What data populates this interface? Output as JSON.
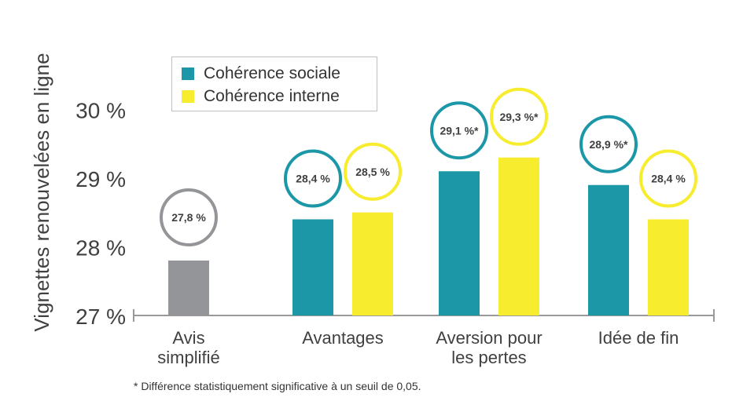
{
  "chart_data": {
    "type": "bar",
    "ylabel": "Vignettes renouvelées en ligne",
    "ylim": [
      27,
      30
    ],
    "yticks": [
      "27 %",
      "28 %",
      "29 %",
      "30 %"
    ],
    "categories": [
      {
        "label_lines": [
          "Avis",
          "simplifié"
        ]
      },
      {
        "label_lines": [
          "Avantages"
        ]
      },
      {
        "label_lines": [
          "Aversion pour",
          "les pertes"
        ]
      },
      {
        "label_lines": [
          "Idée de fin"
        ]
      }
    ],
    "series": [
      {
        "name": "Cohérence sociale",
        "color": "#1b97a8",
        "values": [
          null,
          28.4,
          29.1,
          28.9
        ],
        "labels": [
          null,
          "28,4 %",
          "29,1 %*",
          "28,9 %*"
        ]
      },
      {
        "name": "Cohérence interne",
        "color": "#f7ec2e",
        "values": [
          null,
          28.5,
          29.3,
          28.4
        ],
        "labels": [
          null,
          "28,5 %",
          "29,3 %*",
          "28,4 %"
        ]
      }
    ],
    "control": {
      "category_index": 0,
      "value": 27.8,
      "label": "27,8 %",
      "color": "#939598"
    },
    "legend_position": "top-left",
    "grid": false,
    "footnote": "* Différence statistiquement significative à un seuil de 0,05."
  }
}
